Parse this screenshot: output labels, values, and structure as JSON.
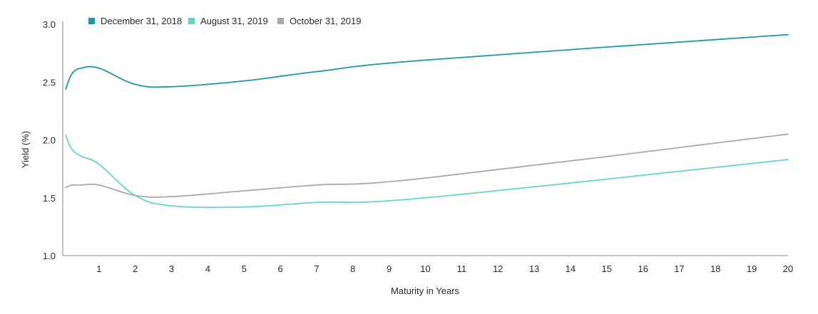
{
  "chart_data": {
    "type": "line",
    "title": "",
    "xlabel": "Maturity in Years",
    "ylabel": "Yield (%)",
    "xlim": [
      0,
      20
    ],
    "ylim": [
      1.0,
      3.0
    ],
    "x_ticks": [
      "1",
      "2",
      "3",
      "4",
      "5",
      "6",
      "7",
      "8",
      "9",
      "10",
      "11",
      "12",
      "13",
      "14",
      "15",
      "16",
      "17",
      "18",
      "19",
      "20"
    ],
    "y_ticks": [
      "1.0",
      "1.5",
      "2.0",
      "2.5",
      "3.0"
    ],
    "grid": false,
    "legend_position": "top-left",
    "series": [
      {
        "name": "December 31, 2018",
        "color": "#1a9aa0",
        "x": [
          0.083,
          0.25,
          0.5,
          1,
          2,
          3,
          5,
          7,
          10,
          20
        ],
        "y": [
          2.44,
          2.57,
          2.62,
          2.62,
          2.48,
          2.46,
          2.51,
          2.59,
          2.69,
          2.91
        ]
      },
      {
        "name": "August 31, 2019",
        "color": "#5fd8c7",
        "x": [
          0.083,
          0.25,
          0.5,
          1,
          2,
          3,
          5,
          7,
          10,
          20
        ],
        "y": [
          2.04,
          1.92,
          1.86,
          1.79,
          1.52,
          1.43,
          1.42,
          1.46,
          1.5,
          1.83
        ]
      },
      {
        "name": "October 31, 2019",
        "color": "#a9a9a9",
        "x": [
          0.083,
          0.25,
          0.5,
          1,
          2,
          3,
          5,
          7,
          10,
          20
        ],
        "y": [
          1.59,
          1.61,
          1.61,
          1.61,
          1.52,
          1.51,
          1.56,
          1.61,
          1.67,
          2.05
        ]
      }
    ]
  }
}
